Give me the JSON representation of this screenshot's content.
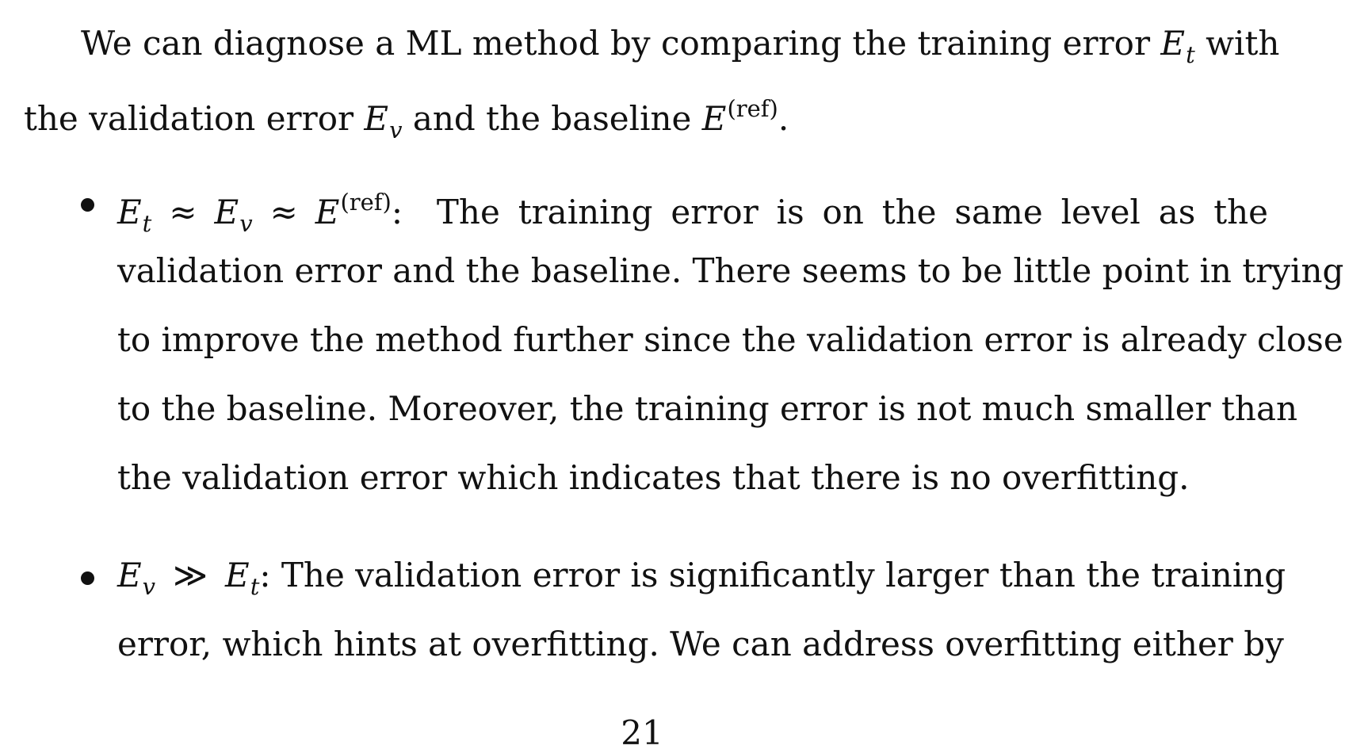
{
  "intro": {
    "line1": "We can diagnose a ML method by comparing the training error",
    "line1_symbol": "E",
    "line1_sub": "t",
    "line1_end": "with",
    "line2": "the validation error",
    "line2_symbol": "E",
    "line2_sub": "v",
    "line2_mid": "and the baseline",
    "line2_symbol2": "E",
    "line2_sup": "(ref)",
    "line2_end": "."
  },
  "items": [
    {
      "condition": {
        "e1": "E",
        "s1": "t",
        "rel1": "≈",
        "e2": "E",
        "s2": "v",
        "rel2": "≈",
        "e3": "E",
        "sup3": "(ref)",
        "colon": ":"
      },
      "lines": [
        "The training error is on the same level as the",
        "validation error and the baseline. There seems to be little point in trying",
        "to improve the method further since the validation error is already close",
        "to the baseline. Moreover, the training error is not much smaller than",
        "the validation error which indicates that there is no overfitting."
      ]
    },
    {
      "condition": {
        "e1": "E",
        "s1": "v",
        "rel1": "≫",
        "e2": "E",
        "s2": "t",
        "colon": ":"
      },
      "lines": [
        "The validation error is significantly larger than the training",
        "error, which hints at overfitting. We can address overfitting either by"
      ]
    }
  ],
  "page_number": "21"
}
